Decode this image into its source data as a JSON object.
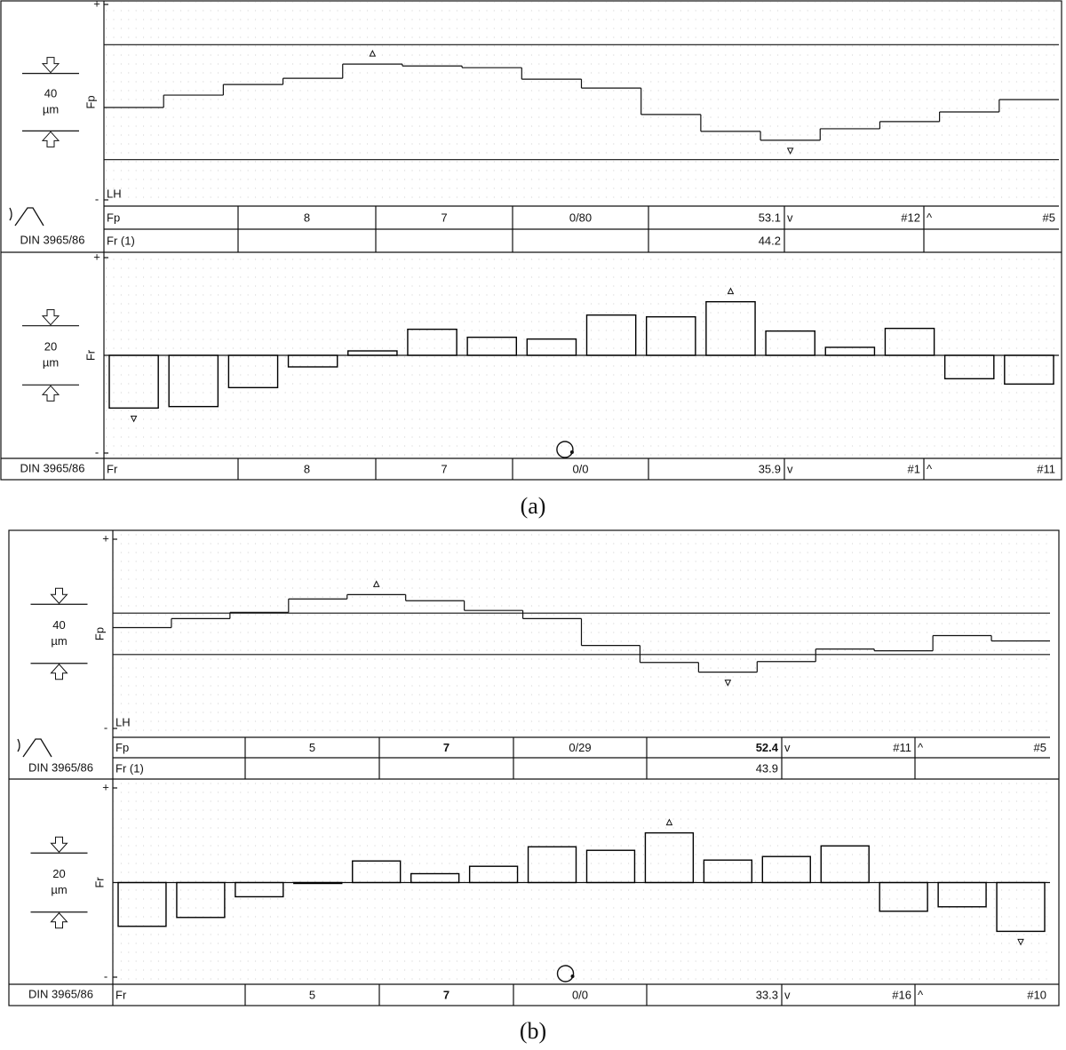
{
  "chart_data": [
    {
      "type": "step",
      "ylabel": "Fp",
      "scale_value": 40,
      "scale_unit": "µm",
      "annotation": "LH",
      "color": "#000000",
      "ylim": [
        -68,
        68
      ],
      "yticks": [
        {
          "value": 68,
          "label": "+"
        },
        {
          "value": -68,
          "label": "-"
        }
      ],
      "limits": [
        40,
        -40
      ],
      "values": [
        -3.7,
        4.9,
        12.3,
        16.6,
        26.5,
        25.2,
        24.0,
        16.0,
        9.8,
        -8.6,
        -20.3,
        -26.5,
        -18.5,
        -13.5,
        -6.8,
        1.8
      ]
    },
    {
      "type": "bar",
      "ylabel": "Fr",
      "scale_value": 20,
      "scale_unit": "µm",
      "color": "#000000",
      "ylim": [
        -33,
        33
      ],
      "yticks": [
        {
          "value": 33,
          "label": "+"
        },
        {
          "value": -33,
          "label": "-"
        }
      ],
      "values": [
        -17.8,
        -17.3,
        -10.9,
        -3.9,
        1.5,
        8.8,
        6.1,
        5.5,
        13.6,
        13.0,
        18.1,
        8.2,
        2.7,
        9.1,
        -7.9,
        -9.7
      ]
    },
    {
      "type": "step",
      "ylabel": "Fp",
      "scale_value": 40,
      "scale_unit": "µm",
      "annotation": "LH",
      "color": "#000000",
      "ylim": [
        -64,
        64
      ],
      "yticks": [
        {
          "value": 64,
          "label": "+"
        },
        {
          "value": -64,
          "label": "-"
        }
      ],
      "limits": [
        14,
        -14
      ],
      "values": [
        4.2,
        10.3,
        14.5,
        23.6,
        26.5,
        22.4,
        15.8,
        10.3,
        -7.9,
        -19.4,
        -25.9,
        -18.8,
        -10.3,
        -11.5,
        -1.2,
        -4.8
      ]
    },
    {
      "type": "bar",
      "ylabel": "Fr",
      "scale_value": 20,
      "scale_unit": "µm",
      "color": "#000000",
      "ylim": [
        -32,
        32
      ],
      "yticks": [
        {
          "value": 32,
          "label": "+"
        },
        {
          "value": -32,
          "label": "-"
        }
      ],
      "values": [
        -14.8,
        -11.8,
        -4.8,
        -0.3,
        7.3,
        3.0,
        5.5,
        12.1,
        10.9,
        16.8,
        7.6,
        8.8,
        12.4,
        -9.7,
        -8.2,
        -16.5
      ]
    }
  ],
  "panels": [
    {
      "caption": "(a)",
      "standard": "DIN 3965/86",
      "rows": [
        {
          "label": "Fp",
          "c1": 8,
          "c2": 7,
          "c3": "0/80",
          "value": 53.1,
          "min_mark": "v",
          "min_tooth": "#12",
          "max_mark": "^",
          "max_tooth": "#5"
        },
        {
          "label": "Fr (1)",
          "value": 44.2
        },
        {
          "label": "Fr",
          "c1": 8,
          "c2": 7,
          "c3": "0/0",
          "value": 35.9,
          "min_mark": "v",
          "min_tooth": "#1",
          "max_mark": "^",
          "max_tooth": "#11"
        }
      ]
    },
    {
      "caption": "(b)",
      "standard": "DIN 3965/86",
      "rows": [
        {
          "label": "Fp",
          "c1": 5,
          "c2": 7,
          "c3": "0/29",
          "value": 52.4,
          "min_mark": "v",
          "min_tooth": "#11",
          "max_mark": "^",
          "max_tooth": "#5",
          "bold": [
            "c2",
            "value"
          ]
        },
        {
          "label": "Fr (1)",
          "value": 43.9
        },
        {
          "label": "Fr",
          "c1": 5,
          "c2": 7,
          "c3": "0/0",
          "value": 33.3,
          "min_mark": "v",
          "min_tooth": "#16",
          "max_mark": "^",
          "max_tooth": "#10",
          "bold": [
            "c2"
          ]
        }
      ]
    }
  ]
}
